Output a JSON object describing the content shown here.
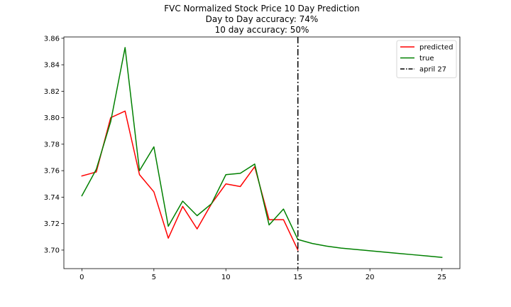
{
  "chart_data": {
    "type": "line",
    "title_lines": [
      "FVC Normalized Stock Price 10 Day Prediction",
      "Day to Day accuracy: 74%",
      "10 day accuracy: 50%"
    ],
    "xlabel": "",
    "ylabel": "",
    "xlim": [
      -1.25,
      26.25
    ],
    "ylim": [
      3.686,
      3.861
    ],
    "xticks": [
      0,
      5,
      10,
      15,
      20,
      25
    ],
    "yticks": [
      3.7,
      3.72,
      3.74,
      3.76,
      3.78,
      3.8,
      3.82,
      3.84,
      3.86
    ],
    "ytick_labels": [
      "3.70",
      "3.72",
      "3.74",
      "3.76",
      "3.78",
      "3.80",
      "3.82",
      "3.84",
      "3.86"
    ],
    "grid": false,
    "legend_position": "top-right",
    "series": [
      {
        "name": "predicted",
        "color": "#ff0000",
        "x": [
          0,
          1,
          2,
          3,
          4,
          5,
          6,
          7,
          8,
          9,
          10,
          11,
          12,
          13,
          14,
          15
        ],
        "y": [
          3.756,
          3.759,
          3.8,
          3.805,
          3.757,
          3.744,
          3.709,
          3.733,
          3.716,
          3.735,
          3.75,
          3.748,
          3.763,
          3.723,
          3.723,
          3.7
        ]
      },
      {
        "name": "true",
        "color": "#008000",
        "x": [
          0,
          1,
          2,
          3,
          4,
          5,
          6,
          7,
          8,
          9,
          10,
          11,
          12,
          13,
          14,
          15,
          16,
          17,
          18,
          19,
          20,
          21,
          22,
          23,
          24,
          25
        ],
        "y": [
          3.741,
          3.761,
          3.797,
          3.853,
          3.76,
          3.778,
          3.718,
          3.737,
          3.726,
          3.735,
          3.757,
          3.758,
          3.765,
          3.719,
          3.731,
          3.708,
          3.705,
          3.703,
          3.7015,
          3.7005,
          3.6995,
          3.6985,
          3.6975,
          3.6965,
          3.6955,
          3.6945
        ]
      }
    ],
    "vlines": [
      {
        "name": "april 27",
        "x": 15,
        "color": "#000000",
        "style": "dashdot"
      }
    ]
  }
}
